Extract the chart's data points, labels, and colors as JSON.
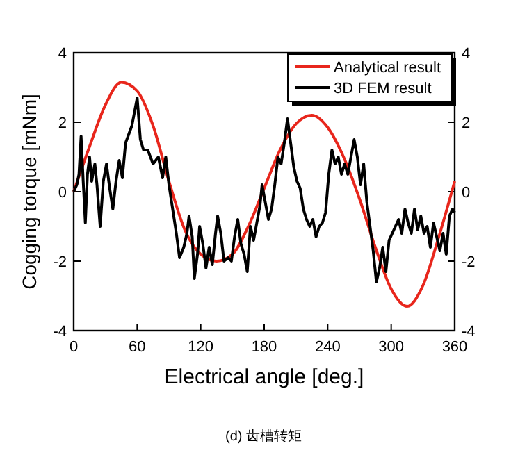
{
  "chart_data": {
    "type": "line",
    "xlabel": "Electrical angle [deg.]",
    "ylabel": "Cogging torque [mNm]",
    "annotations": [
      "(d) 齿槽转矩"
    ],
    "xlim": [
      0,
      360
    ],
    "xticks": [
      0,
      60,
      120,
      180,
      240,
      300,
      360
    ],
    "ylim": [
      -4,
      4
    ],
    "yticks": [
      -4,
      -2,
      0,
      2,
      4
    ],
    "y2lim": [
      -4,
      4
    ],
    "y2ticks": [
      -4,
      -2,
      0,
      2,
      4
    ],
    "legend": "top right",
    "grid": false,
    "marker": "none",
    "line_style": "solid",
    "series": [
      {
        "name": "Analytical result",
        "color": "#e8261c",
        "x": [
          0,
          15,
          30,
          45,
          60,
          75,
          90,
          105,
          120,
          135,
          150,
          165,
          180,
          195,
          210,
          225,
          240,
          255,
          270,
          285,
          300,
          315,
          330,
          345,
          360
        ],
        "values": [
          0,
          1.3,
          2.5,
          3.15,
          2.9,
          1.9,
          0.3,
          -1.1,
          -1.8,
          -2.0,
          -1.8,
          -1.0,
          0.1,
          1.2,
          1.95,
          2.2,
          1.85,
          1.0,
          -0.2,
          -1.6,
          -2.8,
          -3.3,
          -2.7,
          -1.3,
          0.3
        ]
      },
      {
        "name": "3D FEM result",
        "color": "#000000",
        "x": [
          0,
          3,
          5,
          7,
          9,
          11,
          13,
          15,
          17,
          20,
          22,
          25,
          28,
          31,
          34,
          37,
          40,
          43,
          46,
          49,
          55,
          60,
          63,
          66,
          70,
          75,
          80,
          84,
          87,
          90,
          93,
          97,
          100,
          104,
          107,
          109,
          112,
          114,
          117,
          119,
          122,
          125,
          128,
          131,
          134,
          136,
          139,
          142,
          146,
          149,
          152,
          155,
          158,
          161,
          164,
          167,
          170,
          173,
          176,
          178,
          181,
          184,
          187,
          190,
          193,
          196,
          199,
          202,
          205,
          208,
          211,
          214,
          217,
          220,
          223,
          226,
          229,
          232,
          235,
          238,
          241,
          244,
          247,
          250,
          253,
          256,
          259,
          262,
          265,
          268,
          271,
          274,
          277,
          280,
          283,
          286,
          289,
          292,
          295,
          298,
          301,
          304,
          307,
          310,
          313,
          316,
          319,
          322,
          325,
          328,
          331,
          334,
          337,
          340,
          343,
          346,
          349,
          352,
          355,
          358,
          360
        ],
        "values": [
          0,
          0.2,
          0.5,
          1.6,
          0.3,
          -0.9,
          0.5,
          1.0,
          0.3,
          0.8,
          0.2,
          -1.0,
          0.3,
          0.8,
          0.1,
          -0.5,
          0.3,
          0.9,
          0.4,
          1.4,
          1.9,
          2.7,
          1.5,
          1.2,
          1.2,
          0.8,
          1.0,
          0.4,
          1.0,
          0.2,
          -0.4,
          -1.2,
          -1.9,
          -1.6,
          -1.2,
          -0.7,
          -1.3,
          -2.5,
          -1.8,
          -1.0,
          -1.5,
          -2.2,
          -1.6,
          -2.1,
          -1.2,
          -0.7,
          -1.2,
          -2.0,
          -1.9,
          -2.0,
          -1.3,
          -0.8,
          -1.5,
          -1.8,
          -2.3,
          -1.0,
          -1.4,
          -0.9,
          -0.4,
          0.2,
          -0.3,
          -0.8,
          -0.5,
          0.2,
          1.0,
          0.8,
          1.4,
          2.1,
          1.4,
          0.7,
          0.3,
          0.1,
          -0.5,
          -0.8,
          -1.0,
          -0.8,
          -1.3,
          -1.0,
          -0.9,
          -0.6,
          0.5,
          1.2,
          0.8,
          1.0,
          0.5,
          0.8,
          0.5,
          1.0,
          1.5,
          1.0,
          0.2,
          0.8,
          -0.3,
          -1.0,
          -1.7,
          -2.6,
          -2.2,
          -1.6,
          -2.3,
          -1.4,
          -1.2,
          -1.0,
          -0.8,
          -1.2,
          -0.5,
          -0.9,
          -1.2,
          -0.5,
          -1.1,
          -0.7,
          -1.2,
          -1.0,
          -1.6,
          -0.9,
          -1.3,
          -1.7,
          -1.2,
          -1.8,
          -0.7,
          -0.5,
          -0.6
        ]
      }
    ]
  }
}
